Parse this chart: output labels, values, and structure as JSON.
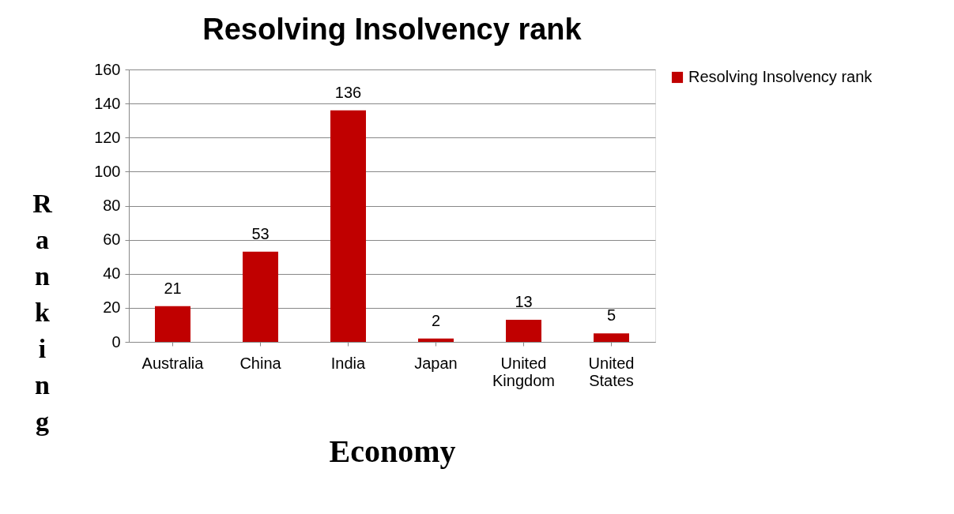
{
  "chart_data": {
    "type": "bar",
    "title": "Resolving Insolvency rank",
    "xlabel": "Economy",
    "ylabel": "Ranking",
    "categories": [
      "Australia",
      "China",
      "India",
      "Japan",
      "United Kingdom",
      "United States"
    ],
    "series": [
      {
        "name": "Resolving Insolvency rank",
        "color": "#c00000",
        "values": [
          21,
          53,
          136,
          2,
          13,
          5
        ]
      }
    ],
    "ylim": [
      0,
      160
    ],
    "yticks": [
      0,
      20,
      40,
      60,
      80,
      100,
      120,
      140,
      160
    ],
    "grid": "y",
    "legend": "right",
    "data_labels": true
  }
}
